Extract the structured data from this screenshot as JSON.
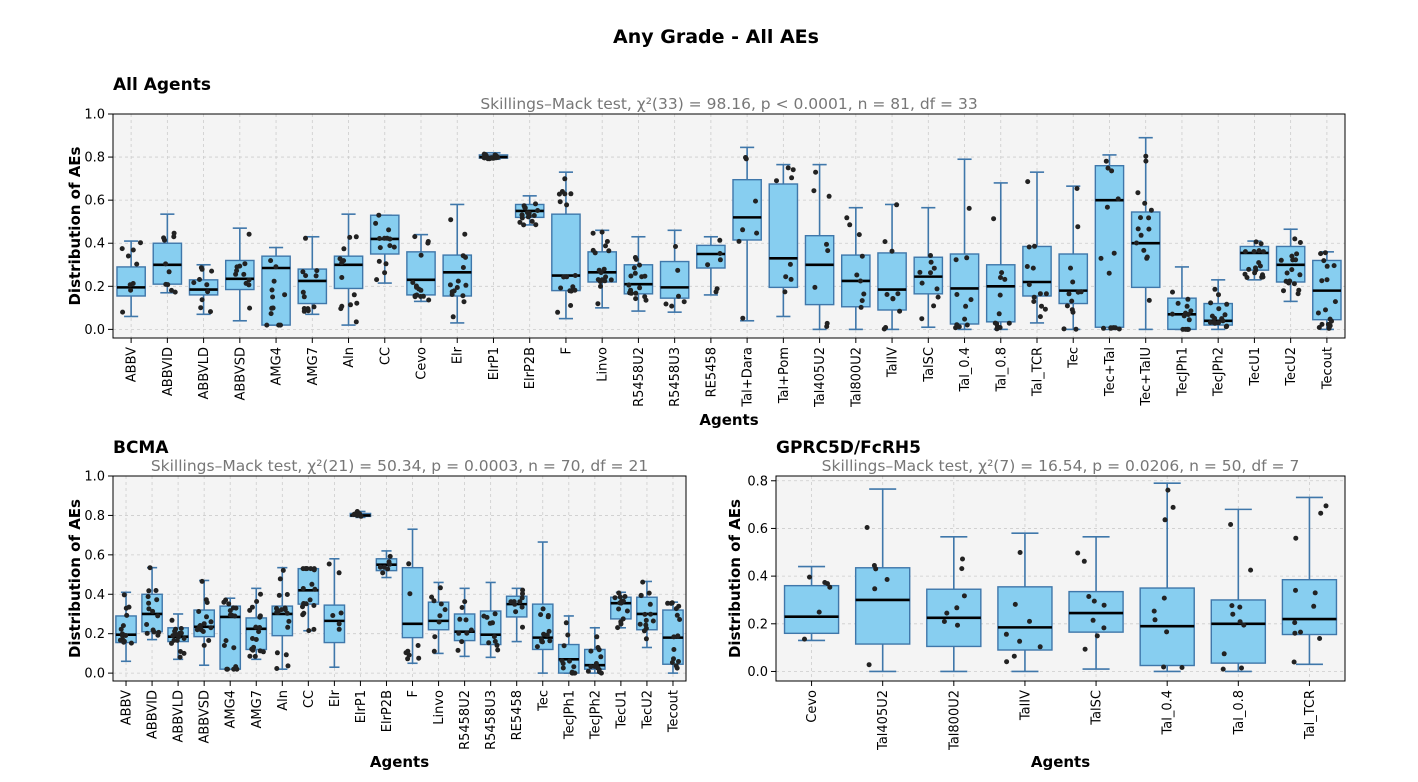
{
  "figure_title": "Any Grade - All AEs",
  "colors": {
    "box_fill": "#87cef0",
    "box_edge": "#3f77aa",
    "median": "#000000",
    "point": "#222222",
    "panel_bg": "#f4f4f4",
    "grid": "#cccccc"
  },
  "chart_data": [
    {
      "type": "box",
      "title": "All Agents",
      "subtitle": "Skillings–Mack test, χ²(33) = 98.16, p < 0.0001, n = 81, df = 33",
      "xlabel": "Agents",
      "ylabel": "Distribution of AEs",
      "ylim": [
        -0.04,
        1.0
      ],
      "yticks": [
        0.0,
        0.2,
        0.4,
        0.6,
        0.8,
        1.0
      ],
      "ytick_labels": [
        "0.0",
        "0.2",
        "0.4",
        "0.6",
        "0.8",
        "1.0"
      ],
      "categories": [
        "ABBV",
        "ABBVID",
        "ABBVLD",
        "ABBVSD",
        "AMG4",
        "AMG7",
        "Aln",
        "CC",
        "Cevo",
        "Elr",
        "ElrP1",
        "ElrP2B",
        "F",
        "Linvo",
        "R5458U2",
        "R5458U3",
        "RE5458",
        "Tal+Dara",
        "Tal+Pom",
        "Tal405U2",
        "Tal800U2",
        "TalIV",
        "TalSC",
        "Tal_0.4",
        "Tal_0.8",
        "Tal_TCR",
        "Tec",
        "Tec+Tal",
        "Tec+TalU",
        "TecJPh1",
        "TecJPh2",
        "TecU1",
        "TecU2",
        "Tecout"
      ],
      "boxes": [
        {
          "whislo": 0.06,
          "q1": 0.155,
          "med": 0.195,
          "q3": 0.29,
          "whishi": 0.41
        },
        {
          "whislo": 0.17,
          "q1": 0.21,
          "med": 0.3,
          "q3": 0.4,
          "whishi": 0.535
        },
        {
          "whislo": 0.07,
          "q1": 0.16,
          "med": 0.185,
          "q3": 0.23,
          "whishi": 0.3
        },
        {
          "whislo": 0.04,
          "q1": 0.185,
          "med": 0.235,
          "q3": 0.32,
          "whishi": 0.47
        },
        {
          "whislo": 0.02,
          "q1": 0.02,
          "med": 0.285,
          "q3": 0.34,
          "whishi": 0.38
        },
        {
          "whislo": 0.07,
          "q1": 0.12,
          "med": 0.225,
          "q3": 0.28,
          "whishi": 0.43
        },
        {
          "whislo": 0.02,
          "q1": 0.19,
          "med": 0.3,
          "q3": 0.34,
          "whishi": 0.535
        },
        {
          "whislo": 0.215,
          "q1": 0.35,
          "med": 0.42,
          "q3": 0.53,
          "whishi": 0.53
        },
        {
          "whislo": 0.13,
          "q1": 0.16,
          "med": 0.23,
          "q3": 0.36,
          "whishi": 0.44
        },
        {
          "whislo": 0.03,
          "q1": 0.155,
          "med": 0.265,
          "q3": 0.345,
          "whishi": 0.58
        },
        {
          "whislo": 0.79,
          "q1": 0.795,
          "med": 0.8,
          "q3": 0.81,
          "whishi": 0.82
        },
        {
          "whislo": 0.485,
          "q1": 0.52,
          "med": 0.55,
          "q3": 0.58,
          "whishi": 0.62
        },
        {
          "whislo": 0.05,
          "q1": 0.18,
          "med": 0.25,
          "q3": 0.535,
          "whishi": 0.73
        },
        {
          "whislo": 0.1,
          "q1": 0.22,
          "med": 0.265,
          "q3": 0.36,
          "whishi": 0.46
        },
        {
          "whislo": 0.085,
          "q1": 0.165,
          "med": 0.21,
          "q3": 0.3,
          "whishi": 0.43
        },
        {
          "whislo": 0.08,
          "q1": 0.145,
          "med": 0.195,
          "q3": 0.315,
          "whishi": 0.46
        },
        {
          "whislo": 0.16,
          "q1": 0.285,
          "med": 0.35,
          "q3": 0.39,
          "whishi": 0.43
        },
        {
          "whislo": 0.04,
          "q1": 0.415,
          "med": 0.52,
          "q3": 0.695,
          "whishi": 0.845
        },
        {
          "whislo": 0.06,
          "q1": 0.195,
          "med": 0.33,
          "q3": 0.675,
          "whishi": 0.765
        },
        {
          "whislo": 0.0,
          "q1": 0.115,
          "med": 0.3,
          "q3": 0.435,
          "whishi": 0.765
        },
        {
          "whislo": 0.0,
          "q1": 0.105,
          "med": 0.225,
          "q3": 0.345,
          "whishi": 0.565
        },
        {
          "whislo": 0.0,
          "q1": 0.09,
          "med": 0.185,
          "q3": 0.355,
          "whishi": 0.58
        },
        {
          "whislo": 0.01,
          "q1": 0.165,
          "med": 0.245,
          "q3": 0.335,
          "whishi": 0.565
        },
        {
          "whislo": 0.0,
          "q1": 0.025,
          "med": 0.19,
          "q3": 0.35,
          "whishi": 0.79
        },
        {
          "whislo": 0.0,
          "q1": 0.035,
          "med": 0.2,
          "q3": 0.3,
          "whishi": 0.68
        },
        {
          "whislo": 0.03,
          "q1": 0.155,
          "med": 0.22,
          "q3": 0.385,
          "whishi": 0.73
        },
        {
          "whislo": 0.0,
          "q1": 0.12,
          "med": 0.18,
          "q3": 0.35,
          "whishi": 0.665
        },
        {
          "whislo": 0.0,
          "q1": 0.01,
          "med": 0.6,
          "q3": 0.76,
          "whishi": 0.81
        },
        {
          "whislo": 0.0,
          "q1": 0.195,
          "med": 0.4,
          "q3": 0.545,
          "whishi": 0.89
        },
        {
          "whislo": 0.0,
          "q1": 0.0,
          "med": 0.07,
          "q3": 0.145,
          "whishi": 0.29
        },
        {
          "whislo": 0.0,
          "q1": 0.02,
          "med": 0.04,
          "q3": 0.12,
          "whishi": 0.23
        },
        {
          "whislo": 0.23,
          "q1": 0.275,
          "med": 0.355,
          "q3": 0.385,
          "whishi": 0.41
        },
        {
          "whislo": 0.13,
          "q1": 0.22,
          "med": 0.3,
          "q3": 0.385,
          "whishi": 0.465
        },
        {
          "whislo": 0.0,
          "q1": 0.045,
          "med": 0.18,
          "q3": 0.32,
          "whishi": 0.36
        }
      ]
    },
    {
      "type": "box",
      "title": "BCMA",
      "subtitle": "Skillings–Mack test, χ²(21) = 50.34, p = 0.0003, n = 70, df = 21",
      "xlabel": "Agents",
      "ylabel": "Distribution of AEs",
      "ylim": [
        -0.04,
        1.0
      ],
      "yticks": [
        0.0,
        0.2,
        0.4,
        0.6,
        0.8,
        1.0
      ],
      "ytick_labels": [
        "0.0",
        "0.2",
        "0.4",
        "0.6",
        "0.8",
        "1.0"
      ],
      "categories": [
        "ABBV",
        "ABBVID",
        "ABBVLD",
        "ABBVSD",
        "AMG4",
        "AMG7",
        "Aln",
        "CC",
        "Elr",
        "ElrP1",
        "ElrP2B",
        "F",
        "Linvo",
        "R5458U2",
        "R5458U3",
        "RE5458",
        "Tec",
        "TecJPh1",
        "TecJPh2",
        "TecU1",
        "TecU2",
        "Tecout"
      ],
      "boxes": [
        {
          "whislo": 0.06,
          "q1": 0.155,
          "med": 0.195,
          "q3": 0.29,
          "whishi": 0.41
        },
        {
          "whislo": 0.17,
          "q1": 0.21,
          "med": 0.3,
          "q3": 0.4,
          "whishi": 0.535
        },
        {
          "whislo": 0.07,
          "q1": 0.16,
          "med": 0.185,
          "q3": 0.23,
          "whishi": 0.3
        },
        {
          "whislo": 0.04,
          "q1": 0.185,
          "med": 0.235,
          "q3": 0.32,
          "whishi": 0.47
        },
        {
          "whislo": 0.02,
          "q1": 0.02,
          "med": 0.285,
          "q3": 0.34,
          "whishi": 0.38
        },
        {
          "whislo": 0.07,
          "q1": 0.12,
          "med": 0.225,
          "q3": 0.28,
          "whishi": 0.43
        },
        {
          "whislo": 0.02,
          "q1": 0.19,
          "med": 0.3,
          "q3": 0.34,
          "whishi": 0.535
        },
        {
          "whislo": 0.215,
          "q1": 0.35,
          "med": 0.42,
          "q3": 0.53,
          "whishi": 0.53
        },
        {
          "whislo": 0.03,
          "q1": 0.155,
          "med": 0.265,
          "q3": 0.345,
          "whishi": 0.58
        },
        {
          "whislo": 0.79,
          "q1": 0.795,
          "med": 0.8,
          "q3": 0.81,
          "whishi": 0.82
        },
        {
          "whislo": 0.485,
          "q1": 0.52,
          "med": 0.55,
          "q3": 0.58,
          "whishi": 0.62
        },
        {
          "whislo": 0.05,
          "q1": 0.18,
          "med": 0.25,
          "q3": 0.535,
          "whishi": 0.73
        },
        {
          "whislo": 0.1,
          "q1": 0.22,
          "med": 0.265,
          "q3": 0.36,
          "whishi": 0.46
        },
        {
          "whislo": 0.085,
          "q1": 0.165,
          "med": 0.21,
          "q3": 0.3,
          "whishi": 0.43
        },
        {
          "whislo": 0.08,
          "q1": 0.145,
          "med": 0.195,
          "q3": 0.315,
          "whishi": 0.46
        },
        {
          "whislo": 0.16,
          "q1": 0.285,
          "med": 0.35,
          "q3": 0.39,
          "whishi": 0.43
        },
        {
          "whislo": 0.0,
          "q1": 0.12,
          "med": 0.18,
          "q3": 0.35,
          "whishi": 0.665
        },
        {
          "whislo": 0.0,
          "q1": 0.0,
          "med": 0.07,
          "q3": 0.145,
          "whishi": 0.29
        },
        {
          "whislo": 0.0,
          "q1": 0.02,
          "med": 0.04,
          "q3": 0.12,
          "whishi": 0.23
        },
        {
          "whislo": 0.23,
          "q1": 0.275,
          "med": 0.355,
          "q3": 0.385,
          "whishi": 0.41
        },
        {
          "whislo": 0.13,
          "q1": 0.22,
          "med": 0.3,
          "q3": 0.385,
          "whishi": 0.465
        },
        {
          "whislo": 0.0,
          "q1": 0.045,
          "med": 0.18,
          "q3": 0.32,
          "whishi": 0.36
        }
      ]
    },
    {
      "type": "box",
      "title": "GPRC5D/FcRH5",
      "subtitle": "Skillings–Mack test, χ²(7) = 16.54, p = 0.0206, n = 50, df = 7",
      "xlabel": "Agents",
      "ylabel": "Distribution of AEs",
      "ylim": [
        -0.04,
        0.82
      ],
      "yticks": [
        0.0,
        0.2,
        0.4,
        0.6,
        0.8
      ],
      "ytick_labels": [
        "0.0",
        "0.2",
        "0.4",
        "0.6",
        "0.8"
      ],
      "categories": [
        "Cevo",
        "Tal405U2",
        "Tal800U2",
        "TalIV",
        "TalSC",
        "Tal_0.4",
        "Tal_0.8",
        "Tal_TCR"
      ],
      "boxes": [
        {
          "whislo": 0.13,
          "q1": 0.16,
          "med": 0.23,
          "q3": 0.36,
          "whishi": 0.44
        },
        {
          "whislo": 0.0,
          "q1": 0.115,
          "med": 0.3,
          "q3": 0.435,
          "whishi": 0.765
        },
        {
          "whislo": 0.0,
          "q1": 0.105,
          "med": 0.225,
          "q3": 0.345,
          "whishi": 0.565
        },
        {
          "whislo": 0.0,
          "q1": 0.09,
          "med": 0.185,
          "q3": 0.355,
          "whishi": 0.58
        },
        {
          "whislo": 0.01,
          "q1": 0.165,
          "med": 0.245,
          "q3": 0.335,
          "whishi": 0.565
        },
        {
          "whislo": 0.0,
          "q1": 0.025,
          "med": 0.19,
          "q3": 0.35,
          "whishi": 0.79
        },
        {
          "whislo": 0.0,
          "q1": 0.035,
          "med": 0.2,
          "q3": 0.3,
          "whishi": 0.68
        },
        {
          "whislo": 0.03,
          "q1": 0.155,
          "med": 0.22,
          "q3": 0.385,
          "whishi": 0.73
        }
      ]
    }
  ]
}
